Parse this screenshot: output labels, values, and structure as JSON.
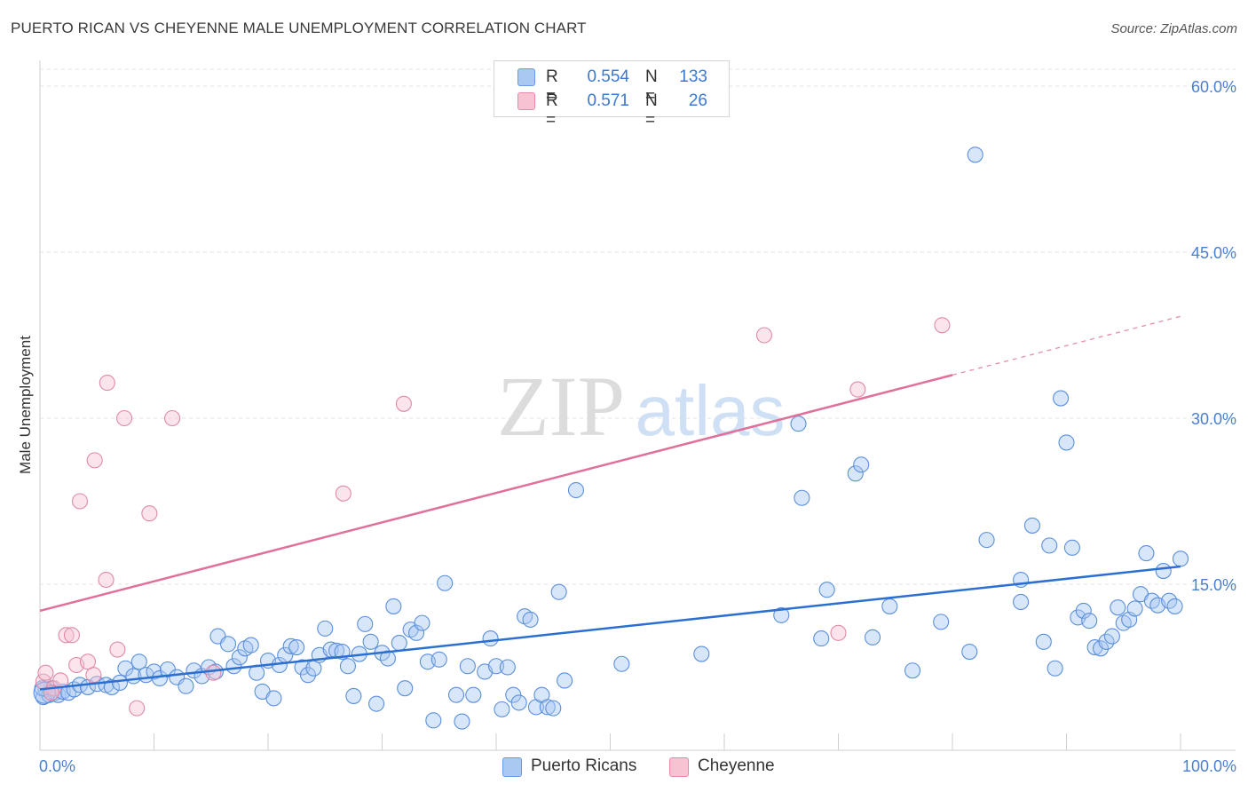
{
  "title": "PUERTO RICAN VS CHEYENNE MALE UNEMPLOYMENT CORRELATION CHART",
  "source": "Source: ZipAtlas.com",
  "watermark": {
    "zip": "ZIP",
    "atlas": "atlas"
  },
  "legend": {
    "rows": [
      {
        "r_label": "R =",
        "r_value": "0.554",
        "n_label": "N =",
        "n_value": "133",
        "color": "#a9c8f2",
        "border": "#6a9be0"
      },
      {
        "r_label": "R =",
        "r_value": "0.571",
        "n_label": "N =",
        "n_value": "26",
        "color": "#f7c3d2",
        "border": "#e58aa8"
      }
    ]
  },
  "bottom_legend": [
    {
      "label": "Puerto Ricans",
      "color": "#a9c8f2",
      "border": "#6a9be0"
    },
    {
      "label": "Cheyenne",
      "color": "#f7c3d2",
      "border": "#e58aa8"
    }
  ],
  "chart_data": {
    "type": "scatter",
    "ylabel": "Male Unemployment",
    "xlabel": "",
    "xlim": [
      0,
      100
    ],
    "ylim": [
      0,
      62
    ],
    "x_tick_labels": [
      "0.0%",
      "100.0%"
    ],
    "y_ticks": [
      15,
      30,
      45,
      60
    ],
    "y_tick_labels": [
      "15.0%",
      "30.0%",
      "45.0%",
      "60.0%"
    ],
    "grid": true,
    "colors": {
      "puerto_ricans": "#5a8fdc",
      "cheyenne": "#e08aa6",
      "pr_line": "#2b6fd0",
      "ch_line": "#e0709a"
    },
    "series": [
      {
        "name": "Puerto Ricans",
        "trend": {
          "x0": 0,
          "y0": 5.5,
          "x1": 100,
          "y1": 16.6
        },
        "points": [
          [
            0.3,
            4.8
          ],
          [
            0.5,
            5.5
          ],
          [
            0.8,
            5.0
          ],
          [
            1.0,
            5.6
          ],
          [
            1.3,
            5.2
          ],
          [
            1.6,
            5.0
          ],
          [
            2.0,
            5.3
          ],
          [
            2.5,
            5.2
          ],
          [
            3.0,
            5.5
          ],
          [
            3.5,
            5.9
          ],
          [
            4.2,
            5.7
          ],
          [
            5.0,
            6.0
          ],
          [
            5.8,
            5.9
          ],
          [
            6.3,
            5.7
          ],
          [
            7.0,
            6.1
          ],
          [
            7.5,
            7.4
          ],
          [
            8.2,
            6.7
          ],
          [
            8.7,
            8.0
          ],
          [
            9.3,
            6.8
          ],
          [
            10.0,
            7.1
          ],
          [
            10.5,
            6.5
          ],
          [
            11.2,
            7.3
          ],
          [
            12.0,
            6.6
          ],
          [
            12.8,
            5.8
          ],
          [
            13.5,
            7.2
          ],
          [
            14.2,
            6.7
          ],
          [
            14.8,
            7.5
          ],
          [
            15.4,
            7.1
          ],
          [
            15.6,
            10.3
          ],
          [
            16.5,
            9.6
          ],
          [
            17.0,
            7.6
          ],
          [
            17.5,
            8.4
          ],
          [
            18.0,
            9.2
          ],
          [
            18.5,
            9.5
          ],
          [
            19.0,
            7.0
          ],
          [
            19.5,
            5.3
          ],
          [
            20.0,
            8.1
          ],
          [
            20.5,
            4.7
          ],
          [
            21.0,
            7.7
          ],
          [
            21.5,
            8.6
          ],
          [
            22.0,
            9.4
          ],
          [
            22.5,
            9.3
          ],
          [
            23.0,
            7.5
          ],
          [
            23.5,
            6.8
          ],
          [
            24.0,
            7.4
          ],
          [
            24.5,
            8.6
          ],
          [
            25.0,
            11.0
          ],
          [
            25.5,
            9.1
          ],
          [
            26.0,
            9.0
          ],
          [
            26.5,
            8.9
          ],
          [
            27.0,
            7.6
          ],
          [
            27.5,
            4.9
          ],
          [
            28.0,
            8.7
          ],
          [
            28.5,
            11.4
          ],
          [
            29.0,
            9.8
          ],
          [
            29.5,
            4.2
          ],
          [
            30.0,
            8.8
          ],
          [
            30.5,
            8.3
          ],
          [
            31.0,
            13.0
          ],
          [
            31.5,
            9.7
          ],
          [
            32.0,
            5.6
          ],
          [
            32.5,
            10.9
          ],
          [
            33.0,
            10.6
          ],
          [
            33.5,
            11.5
          ],
          [
            34.0,
            8.0
          ],
          [
            34.5,
            2.7
          ],
          [
            35.0,
            8.2
          ],
          [
            35.5,
            15.1
          ],
          [
            36.5,
            5.0
          ],
          [
            37.0,
            2.6
          ],
          [
            37.5,
            7.6
          ],
          [
            38.0,
            5.0
          ],
          [
            39.0,
            7.1
          ],
          [
            39.5,
            10.1
          ],
          [
            40.0,
            7.6
          ],
          [
            40.5,
            3.7
          ],
          [
            41.0,
            7.5
          ],
          [
            41.5,
            5.0
          ],
          [
            42.0,
            4.3
          ],
          [
            42.5,
            12.1
          ],
          [
            43.0,
            11.8
          ],
          [
            43.5,
            3.9
          ],
          [
            44.0,
            5.0
          ],
          [
            44.5,
            3.9
          ],
          [
            45.0,
            3.8
          ],
          [
            45.5,
            14.3
          ],
          [
            46.0,
            6.3
          ],
          [
            47.0,
            23.5
          ],
          [
            51.0,
            7.8
          ],
          [
            58.0,
            8.7
          ],
          [
            65.0,
            12.2
          ],
          [
            66.5,
            29.5
          ],
          [
            66.8,
            22.8
          ],
          [
            68.5,
            10.1
          ],
          [
            69.0,
            14.5
          ],
          [
            71.5,
            25.0
          ],
          [
            72.0,
            25.8
          ],
          [
            73.0,
            10.2
          ],
          [
            74.5,
            13.0
          ],
          [
            76.5,
            7.2
          ],
          [
            79.0,
            11.6
          ],
          [
            81.5,
            8.9
          ],
          [
            82.0,
            53.8
          ],
          [
            83.0,
            19.0
          ],
          [
            86.0,
            13.4
          ],
          [
            86.0,
            15.4
          ],
          [
            87.0,
            20.3
          ],
          [
            88.0,
            9.8
          ],
          [
            88.5,
            18.5
          ],
          [
            89.0,
            7.4
          ],
          [
            89.5,
            31.8
          ],
          [
            90.0,
            27.8
          ],
          [
            90.5,
            18.3
          ],
          [
            91.0,
            12.0
          ],
          [
            91.5,
            12.6
          ],
          [
            92.0,
            11.7
          ],
          [
            92.5,
            9.3
          ],
          [
            93.0,
            9.2
          ],
          [
            93.5,
            9.8
          ],
          [
            94.0,
            10.3
          ],
          [
            94.5,
            12.9
          ],
          [
            95.0,
            11.5
          ],
          [
            95.5,
            11.8
          ],
          [
            96.0,
            12.8
          ],
          [
            96.5,
            14.1
          ],
          [
            97.0,
            17.8
          ],
          [
            97.5,
            13.5
          ],
          [
            98.0,
            13.1
          ],
          [
            98.5,
            16.2
          ],
          [
            99.0,
            13.5
          ],
          [
            99.5,
            13.0
          ],
          [
            100.0,
            17.3
          ],
          [
            0.2,
            5.6
          ]
        ]
      },
      {
        "name": "Cheyenne",
        "trend": {
          "x0": 0,
          "y0": 12.6,
          "x1": 80,
          "y1": 33.9,
          "x2": 100,
          "y2": 39.2
        },
        "points": [
          [
            0.3,
            6.2
          ],
          [
            0.5,
            7.0
          ],
          [
            1.2,
            5.6
          ],
          [
            1.8,
            6.3
          ],
          [
            2.3,
            10.4
          ],
          [
            2.8,
            10.4
          ],
          [
            3.2,
            7.7
          ],
          [
            3.5,
            22.5
          ],
          [
            4.2,
            8.0
          ],
          [
            4.7,
            6.8
          ],
          [
            4.8,
            26.2
          ],
          [
            5.8,
            15.4
          ],
          [
            5.9,
            33.2
          ],
          [
            6.8,
            9.1
          ],
          [
            7.4,
            30.0
          ],
          [
            8.5,
            3.8
          ],
          [
            9.6,
            21.4
          ],
          [
            11.6,
            30.0
          ],
          [
            15.2,
            7.0
          ],
          [
            26.6,
            23.2
          ],
          [
            31.9,
            31.3
          ],
          [
            63.5,
            37.5
          ],
          [
            70.0,
            10.6
          ],
          [
            71.7,
            32.6
          ],
          [
            79.1,
            38.4
          ],
          [
            1.0,
            5.2
          ]
        ]
      }
    ]
  }
}
